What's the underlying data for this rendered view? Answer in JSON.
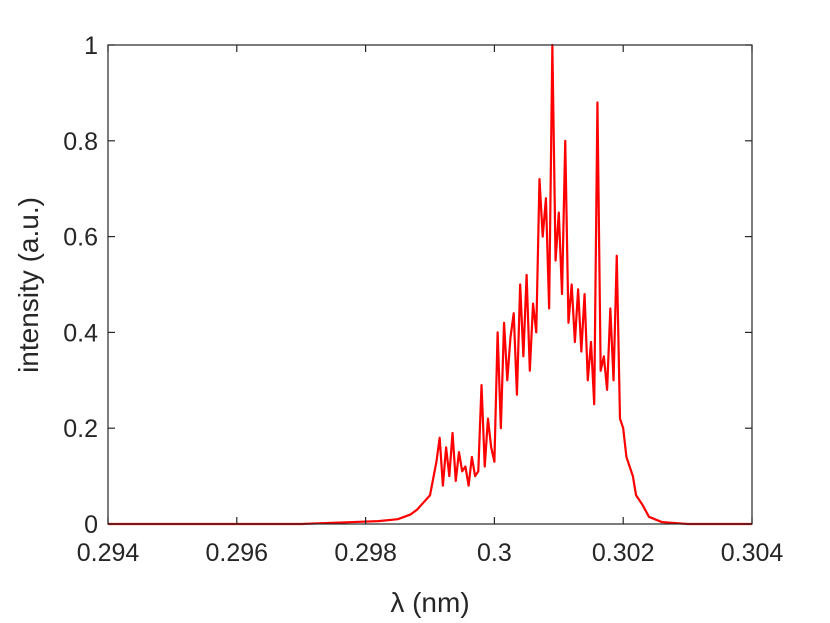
{
  "chart_data": {
    "type": "line",
    "title": "",
    "xlabel": "λ (nm)",
    "ylabel": "intensity (a.u.)",
    "xlim": [
      0.294,
      0.304
    ],
    "ylim": [
      0,
      1
    ],
    "grid": false,
    "legend": "none",
    "x_ticks": [
      0.294,
      0.296,
      0.298,
      0.3,
      0.302,
      0.304
    ],
    "x_tick_labels": [
      "0.294",
      "0.296",
      "0.298",
      "0.3",
      "0.302",
      "0.304"
    ],
    "y_ticks": [
      0,
      0.2,
      0.4,
      0.6,
      0.8,
      1
    ],
    "y_tick_labels": [
      "0",
      "0.2",
      "0.4",
      "0.6",
      "0.8",
      "1"
    ],
    "colors": {
      "line": "#ff0000",
      "axes": "#262626"
    },
    "series": [
      {
        "x": [
          0.294,
          0.297,
          0.2978,
          0.2982,
          0.2985,
          0.2987,
          0.2988,
          0.2989,
          0.299,
          0.2991,
          0.29915,
          0.2992,
          0.29925,
          0.2993,
          0.29935,
          0.2994,
          0.29945,
          0.2995,
          0.29955,
          0.2996,
          0.29965,
          0.2997,
          0.29975,
          0.2998,
          0.29985,
          0.2999,
          0.29995,
          0.3,
          0.30005,
          0.3001,
          0.30015,
          0.3002,
          0.30025,
          0.3003,
          0.30035,
          0.3004,
          0.30045,
          0.3005,
          0.30055,
          0.3006,
          0.30065,
          0.3007,
          0.30075,
          0.3008,
          0.30085,
          0.3009,
          0.30095,
          0.301,
          0.30105,
          0.3011,
          0.30115,
          0.3012,
          0.30125,
          0.3013,
          0.30135,
          0.3014,
          0.30145,
          0.3015,
          0.30155,
          0.3016,
          0.30165,
          0.3017,
          0.30175,
          0.3018,
          0.30185,
          0.3019,
          0.30195,
          0.302,
          0.30205,
          0.3021,
          0.30215,
          0.3022,
          0.3023,
          0.3024,
          0.3026,
          0.303,
          0.304
        ],
        "y": [
          0,
          0,
          0.004,
          0.006,
          0.01,
          0.02,
          0.03,
          0.045,
          0.06,
          0.13,
          0.18,
          0.08,
          0.16,
          0.1,
          0.19,
          0.09,
          0.15,
          0.11,
          0.12,
          0.08,
          0.14,
          0.1,
          0.11,
          0.29,
          0.12,
          0.22,
          0.16,
          0.13,
          0.4,
          0.2,
          0.42,
          0.3,
          0.39,
          0.44,
          0.27,
          0.5,
          0.35,
          0.52,
          0.32,
          0.46,
          0.4,
          0.72,
          0.6,
          0.68,
          0.45,
          1.0,
          0.55,
          0.65,
          0.48,
          0.8,
          0.42,
          0.5,
          0.38,
          0.49,
          0.36,
          0.48,
          0.3,
          0.38,
          0.25,
          0.88,
          0.32,
          0.35,
          0.28,
          0.45,
          0.3,
          0.56,
          0.22,
          0.2,
          0.14,
          0.12,
          0.1,
          0.06,
          0.04,
          0.015,
          0.004,
          0,
          0
        ]
      }
    ]
  }
}
